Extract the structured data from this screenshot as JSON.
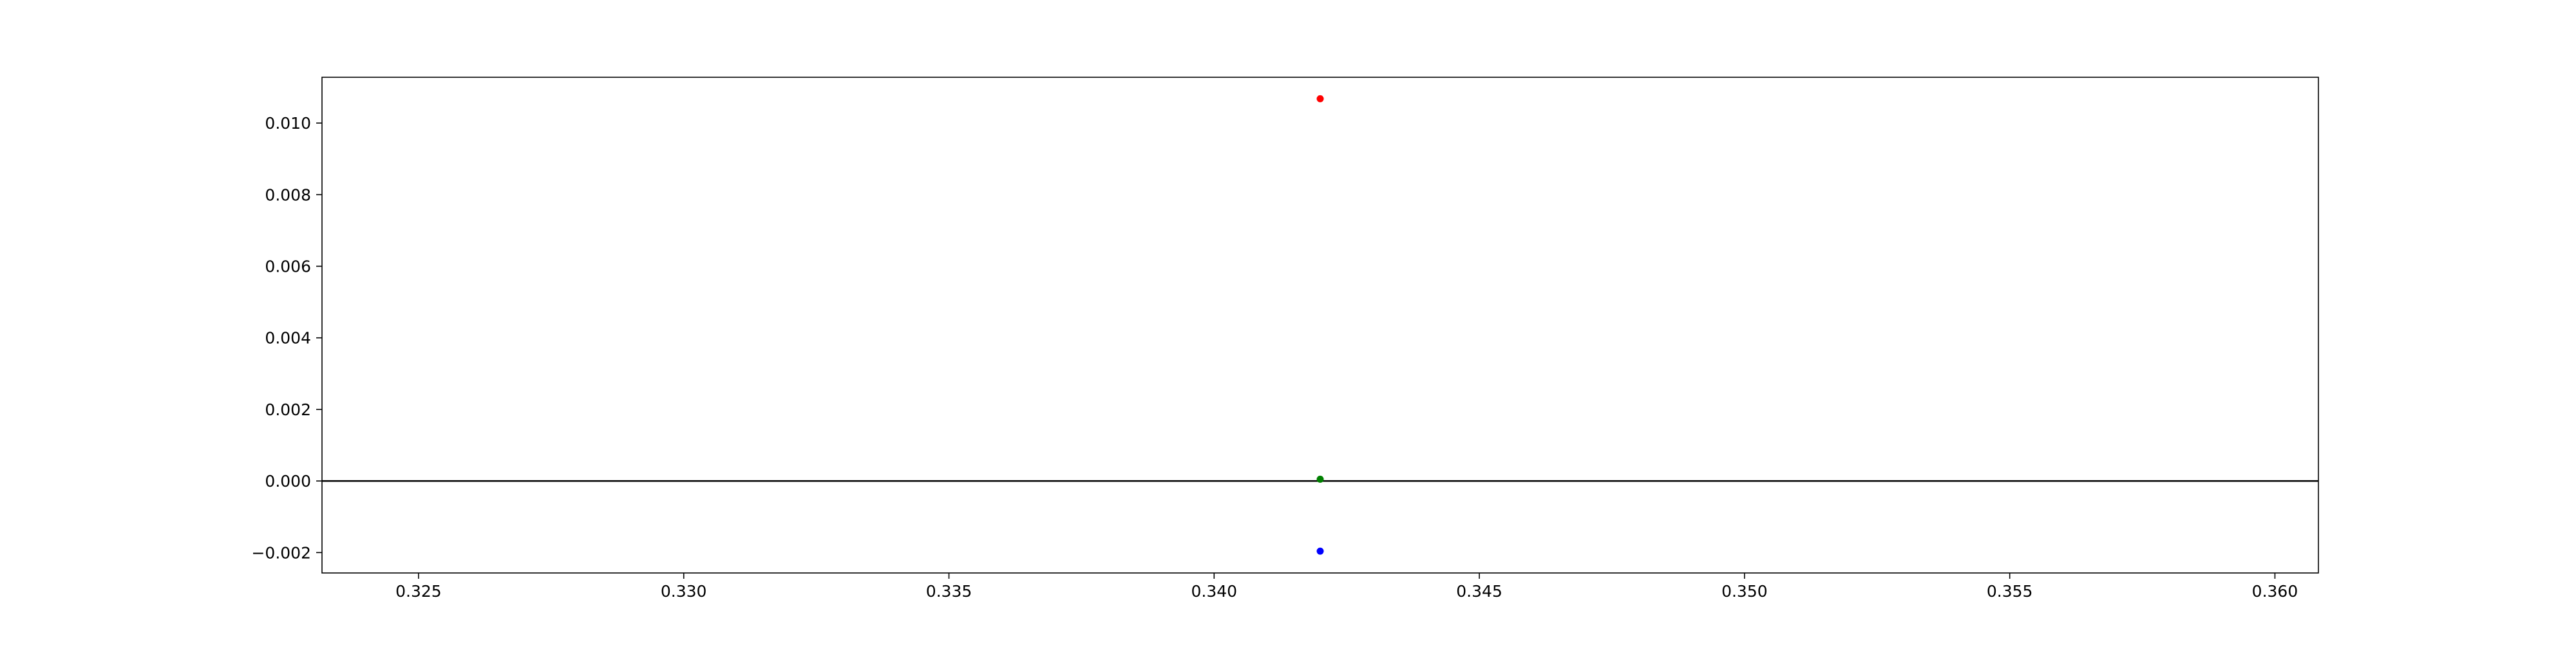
{
  "chart_data": {
    "type": "scatter",
    "title": "",
    "xlabel": "",
    "ylabel": "",
    "xlim": [
      0.32318,
      0.36082
    ],
    "ylim": [
      -0.00257,
      0.01128
    ],
    "x_ticks": [
      0.325,
      0.33,
      0.335,
      0.34,
      0.345,
      0.35,
      0.355,
      0.36
    ],
    "x_tick_labels": [
      "0.325",
      "0.330",
      "0.335",
      "0.340",
      "0.345",
      "0.350",
      "0.355",
      "0.360"
    ],
    "y_ticks": [
      -0.002,
      0.0,
      0.002,
      0.004,
      0.006,
      0.008,
      0.01
    ],
    "y_tick_labels": [
      "−0.002",
      "0.000",
      "0.002",
      "0.004",
      "0.006",
      "0.008",
      "0.010"
    ],
    "reference_line": {
      "y": 0.0,
      "color": "#000000"
    },
    "grid": false,
    "legend": "none",
    "series": [
      {
        "color": "#ff0000",
        "points": [
          {
            "x": 0.342,
            "y": 0.01068
          }
        ]
      },
      {
        "color": "#008000",
        "points": [
          {
            "x": 0.342,
            "y": 5e-05
          }
        ]
      },
      {
        "color": "#0000ff",
        "points": [
          {
            "x": 0.342,
            "y": -0.00196
          }
        ]
      }
    ]
  }
}
